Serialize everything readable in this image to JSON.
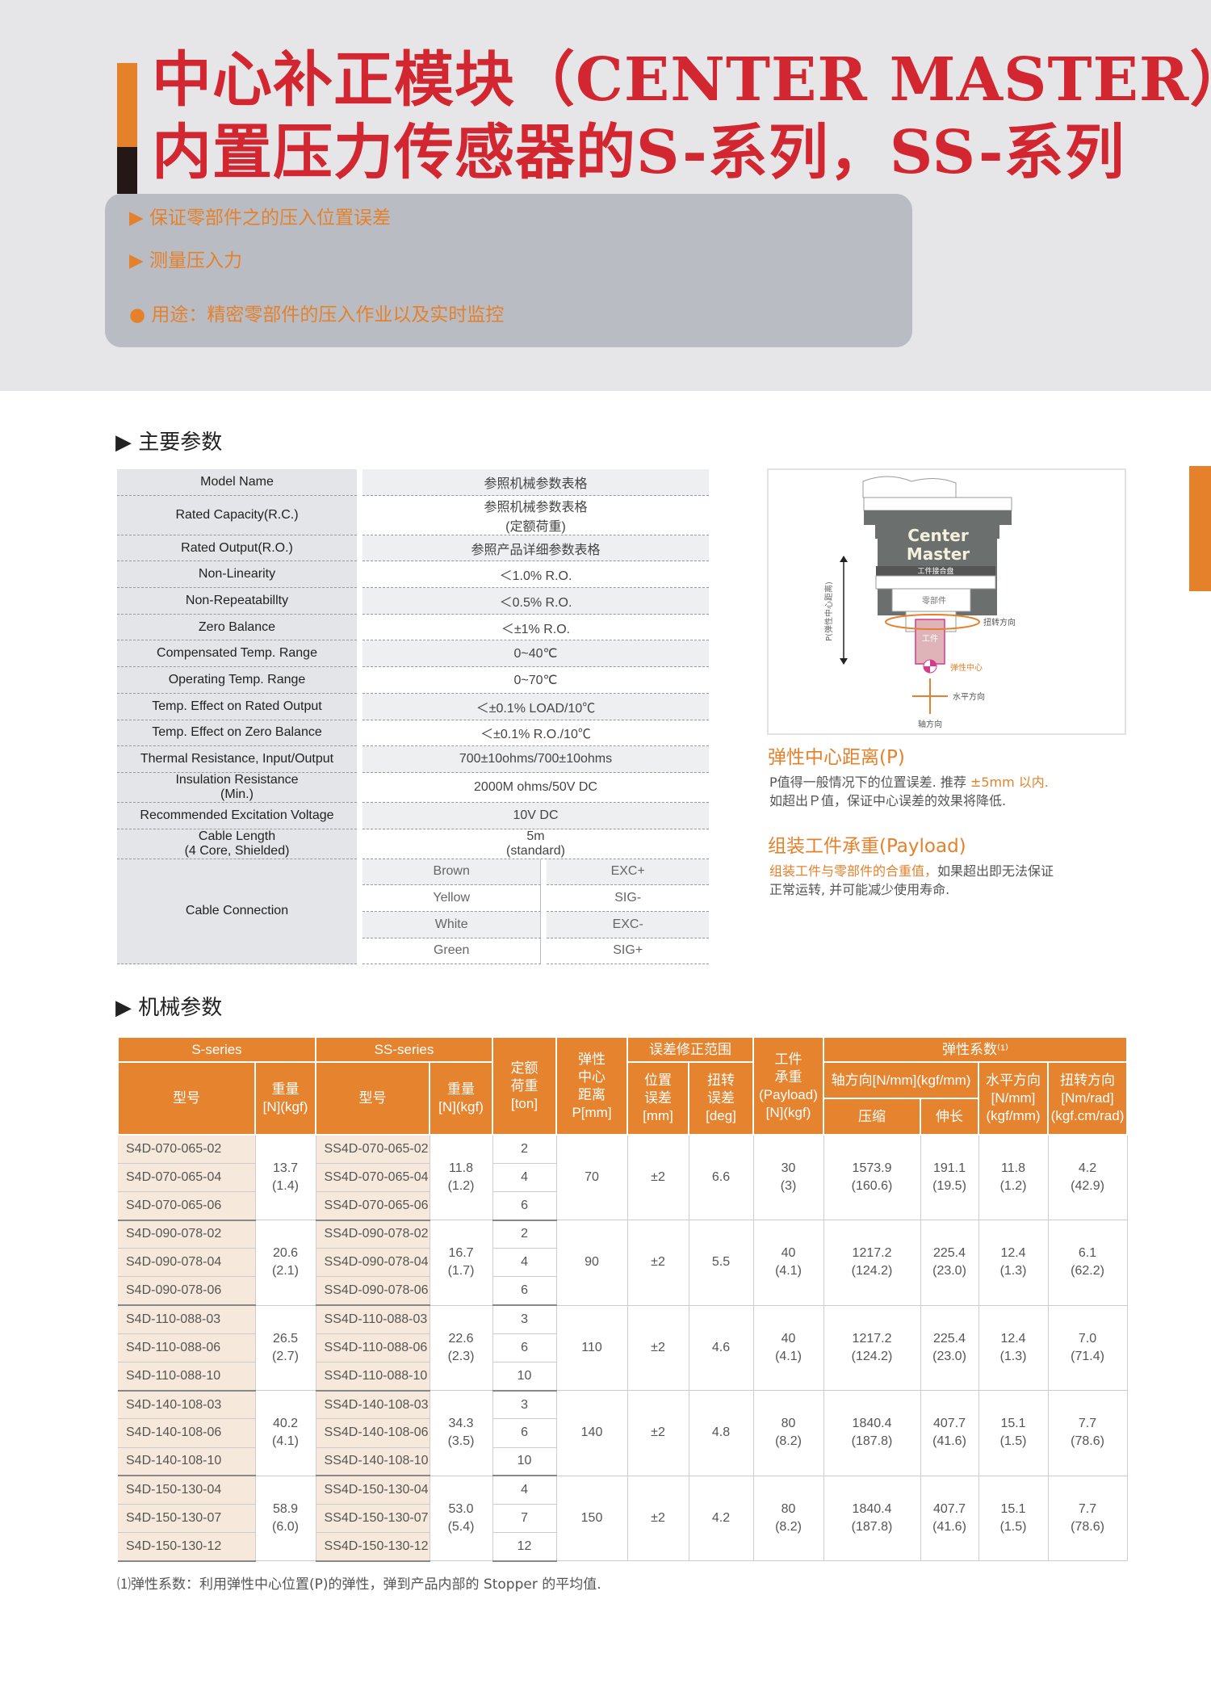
{
  "header": {
    "title_line1": "中心补正模块（CENTER MASTER）",
    "title_line2": "内置压力传感器的S-系列，SS-系列",
    "bullets": [
      "▶ 保证零部件之的压入位置误差",
      "▶ 测量压入力",
      "● 用途：精密零部件的压入作业以及实时监控"
    ]
  },
  "params": {
    "heading": "主要参数",
    "rows": [
      [
        "Model Name",
        "参照机械参数表格"
      ],
      [
        "Rated Capacity(R.C.)",
        "参照机械参数表格 (定额荷重)"
      ],
      [
        "Rated Output(R.O.)",
        "参照产品详细参数表格"
      ],
      [
        "Non-Linearity",
        "＜1.0% R.O."
      ],
      [
        "Non-Repeatabillty",
        "＜0.5% R.O."
      ],
      [
        "Zero Balance",
        "＜±1% R.O."
      ],
      [
        "Compensated Temp. Range",
        "0~40℃"
      ],
      [
        "Operating Temp. Range",
        "0~70℃"
      ],
      [
        "Temp. Effect on Rated Output",
        "＜±0.1% LOAD/10℃"
      ],
      [
        "Temp. Effect on Zero Balance",
        "＜±0.1% R.O./10℃"
      ],
      [
        "Thermal Resistance, Input/Output",
        "700±10ohms/700±10ohms"
      ],
      [
        "Insulation Resistance (Min.)",
        "2000M ohms/50V DC"
      ],
      [
        "Recommended Excitation Voltage",
        "10V DC"
      ],
      [
        "Cable Length (4 Core, Shielded)",
        "5m (standard)"
      ]
    ],
    "cable_label": "Cable Connection",
    "cable": [
      [
        "Brown",
        "EXC+"
      ],
      [
        "Yellow",
        "SIG-"
      ],
      [
        "White",
        "EXC-"
      ],
      [
        "Green",
        "SIG+"
      ]
    ]
  },
  "diagram": {
    "brand1": "Center",
    "brand2": "Master",
    "plate": "工件接合盘",
    "part": "零部件",
    "work": "工件",
    "torsion": "扭转方向",
    "center": "弹性中心",
    "horizontal": "水平方向",
    "axial": "轴方向",
    "p_label": "P(弹性中心距离)"
  },
  "notes": {
    "p_title": "弹性中心距离(P)",
    "p_text1": "P值得一般情况下的位置误差. 推荐 ",
    "p_text_hl": "±5mm 以内.",
    "p_text2": "如超出Ｐ值，保证中心误差的效果将降低.",
    "payload_title": "组装工件承重(Payload)",
    "payload_hl": "组装工件与零部件的合重值，",
    "payload_text1": "如果超出即无法保证",
    "payload_text2": "正常运转, 并可能减少使用寿命."
  },
  "mech": {
    "heading": "机械参数",
    "h": {
      "s": "S-series",
      "ss": "SS-series",
      "model": "型号",
      "weight": "重量 [N](kgf)",
      "rated": "定额 荷重 [ton]",
      "p": "弹性 中心 距离 P[mm]",
      "range": "误差修正范围",
      "pos": "位置 误差 [mm]",
      "tor": "扭转 误差 [deg]",
      "payload": "工件 承重 (Payload) [N](kgf)",
      "spring": "弹性系数⁽¹⁾",
      "axial": "轴方向[N/mm](kgf/mm)",
      "comp": "压缩",
      "ext": "伸长",
      "horiz": "水平方向 [N/mm] (kgf/mm)",
      "torsion": "扭转方向 [Nm/rad] (kgf.cm/rad)"
    },
    "groups": [
      {
        "s": [
          "S4D-070-065-02",
          "S4D-070-065-04",
          "S4D-070-065-06"
        ],
        "sw": "13.7\n(1.4)",
        "ss": [
          "SS4D-070-065-02",
          "SS4D-070-065-04",
          "SS4D-070-065-06"
        ],
        "ssw": "11.8\n(1.2)",
        "ton": [
          "2",
          "4",
          "6"
        ],
        "p": "70",
        "pos": "±2",
        "tor": "6.6",
        "payload": "30\n(3)",
        "comp": "1573.9\n(160.6)",
        "ext": "191.1\n(19.5)",
        "horiz": "11.8\n(1.2)",
        "torsion": "4.2\n(42.9)"
      },
      {
        "s": [
          "S4D-090-078-02",
          "S4D-090-078-04",
          "S4D-090-078-06"
        ],
        "sw": "20.6\n(2.1)",
        "ss": [
          "SS4D-090-078-02",
          "SS4D-090-078-04",
          "SS4D-090-078-06"
        ],
        "ssw": "16.7\n(1.7)",
        "ton": [
          "2",
          "4",
          "6"
        ],
        "p": "90",
        "pos": "±2",
        "tor": "5.5",
        "payload": "40\n(4.1)",
        "comp": "1217.2\n(124.2)",
        "ext": "225.4\n(23.0)",
        "horiz": "12.4\n(1.3)",
        "torsion": "6.1\n(62.2)"
      },
      {
        "s": [
          "S4D-110-088-03",
          "S4D-110-088-06",
          "S4D-110-088-10"
        ],
        "sw": "26.5\n(2.7)",
        "ss": [
          "SS4D-110-088-03",
          "SS4D-110-088-06",
          "SS4D-110-088-10"
        ],
        "ssw": "22.6\n(2.3)",
        "ton": [
          "3",
          "6",
          "10"
        ],
        "p": "110",
        "pos": "±2",
        "tor": "4.6",
        "payload": "40\n(4.1)",
        "comp": "1217.2\n(124.2)",
        "ext": "225.4\n(23.0)",
        "horiz": "12.4\n(1.3)",
        "torsion": "7.0\n(71.4)"
      },
      {
        "s": [
          "S4D-140-108-03",
          "S4D-140-108-06",
          "S4D-140-108-10"
        ],
        "sw": "40.2\n(4.1)",
        "ss": [
          "SS4D-140-108-03",
          "SS4D-140-108-06",
          "SS4D-140-108-10"
        ],
        "ssw": "34.3\n(3.5)",
        "ton": [
          "3",
          "6",
          "10"
        ],
        "p": "140",
        "pos": "±2",
        "tor": "4.8",
        "payload": "80\n(8.2)",
        "comp": "1840.4\n(187.8)",
        "ext": "407.7\n(41.6)",
        "horiz": "15.1\n(1.5)",
        "torsion": "7.7\n(78.6)"
      },
      {
        "s": [
          "S4D-150-130-04",
          "S4D-150-130-07",
          "S4D-150-130-12"
        ],
        "sw": "58.9\n(6.0)",
        "ss": [
          "SS4D-150-130-04",
          "SS4D-150-130-07",
          "SS4D-150-130-12"
        ],
        "ssw": "53.0\n(5.4)",
        "ton": [
          "4",
          "7",
          "12"
        ],
        "p": "150",
        "pos": "±2",
        "tor": "4.2",
        "payload": "80\n(8.2)",
        "comp": "1840.4\n(187.8)",
        "ext": "407.7\n(41.6)",
        "horiz": "15.1\n(1.5)",
        "torsion": "7.7\n(78.6)"
      }
    ],
    "footnote": "⑴弹性系数：利用弹性中心位置(P)的弹性，弹到产品内部的 Stopper 的平均值."
  },
  "colors": {
    "accent": "#e5812b",
    "title_red": "#d22730"
  }
}
